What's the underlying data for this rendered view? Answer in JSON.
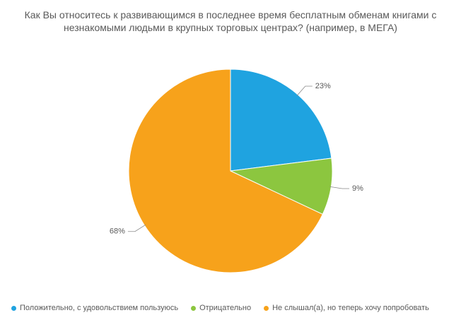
{
  "chart_data": {
    "type": "pie",
    "title": "Как Вы относитесь к развивающимся в последнее время бесплатным обменам книгами с незнакомыми людьми в крупных торговых центрах? (например, в МЕГА)",
    "categories": [
      "Положительно, с удовольствием пользуюсь",
      "Отрицательно",
      "Не слышал(а), но теперь хочу попробовать"
    ],
    "values": [
      23,
      9,
      68
    ],
    "value_labels": [
      "23%",
      "9%",
      "68%"
    ],
    "colors": [
      "#1fa3e0",
      "#8cc63f",
      "#f7a21b"
    ],
    "legend": "bottom"
  }
}
